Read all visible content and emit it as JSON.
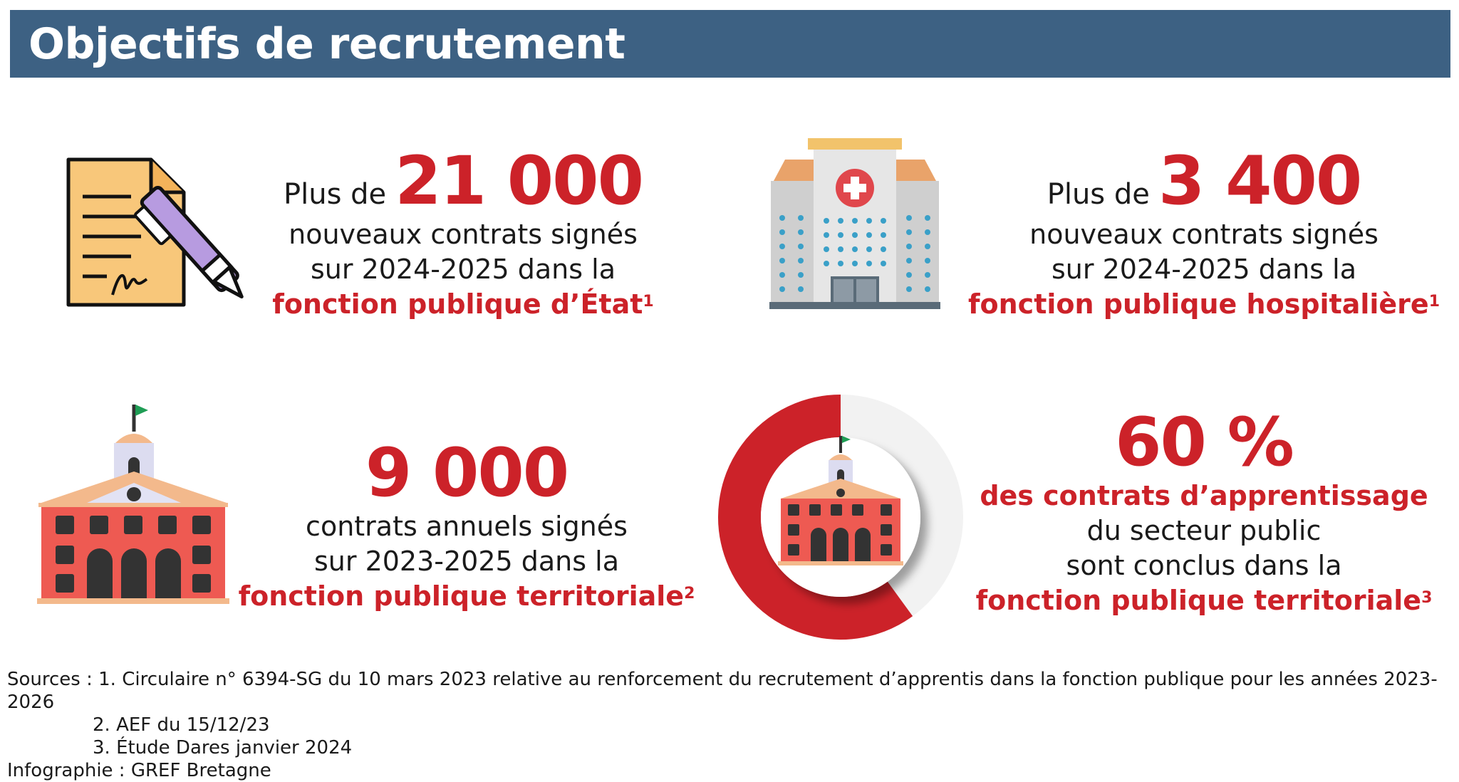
{
  "header": {
    "title": "Objectifs de recrutement"
  },
  "stats": [
    {
      "prefix": "Plus de",
      "value": "21 000",
      "line1": "nouveaux contrats signés",
      "line2": "sur 2024-2025 dans la",
      "highlight": "fonction publique d’État",
      "note": "1",
      "icon": "contract-signing-icon"
    },
    {
      "prefix": "Plus de",
      "value": "3 400",
      "line1": "nouveaux contrats signés",
      "line2": "sur 2024-2025 dans la",
      "highlight": "fonction publique hospitalière",
      "note": "1",
      "icon": "hospital-icon"
    },
    {
      "value": "9 000",
      "line1": "contrats annuels signés",
      "line2": "sur 2023-2025 dans la",
      "highlight": "fonction publique territoriale",
      "note": "2",
      "icon": "town-hall-icon"
    },
    {
      "value": "60 %",
      "highlight_top": "des contrats d’apprentissage",
      "line1": "du secteur public",
      "line2": "sont conclus dans la",
      "highlight": "fonction publique territoriale",
      "note": "3",
      "icon": "donut-town-hall-icon",
      "percent": 60
    }
  ],
  "sources": {
    "line1": "Sources : 1. Circulaire n° 6394-SG du 10 mars 2023 relative au renforcement du recrutement d’apprentis dans la fonction publique pour les années 2023-2026",
    "line2": "2. AEF du 15/12/23",
    "line3": "3. Étude Dares janvier 2024",
    "credit": "Infographie : GREF Bretagne"
  },
  "colors": {
    "banner": "#3d6183",
    "accent": "#cc2229",
    "donut_rest": "#f2f2f2"
  }
}
